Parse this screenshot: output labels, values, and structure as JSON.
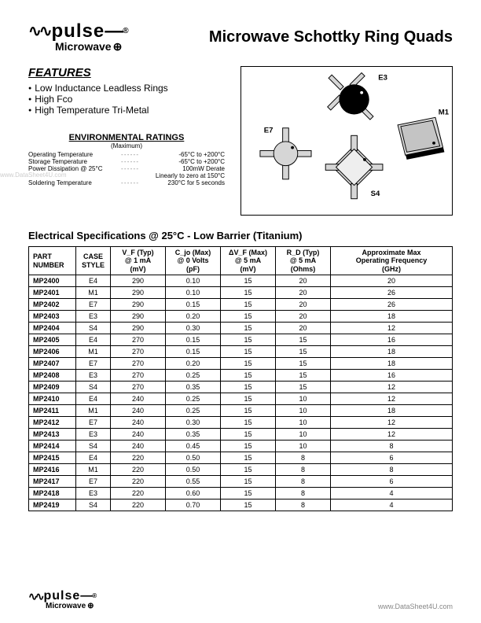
{
  "logo": {
    "brand": "pulse",
    "wave_glyph": "∿∿",
    "register": "®",
    "sub": "Microwave",
    "sub_glyph": "⊕"
  },
  "title": "Microwave Schottky Ring Quads",
  "features": {
    "heading": "FEATURES",
    "items": [
      "Low Inductance Leadless Rings",
      "High Fco",
      "High Temperature Tri-Metal"
    ]
  },
  "env": {
    "heading": "ENVIRONMENTAL RATINGS",
    "sub": "(Maximum)",
    "rows": [
      {
        "label": "Operating Temperature",
        "value": "-65°C to +200°C"
      },
      {
        "label": "Storage Temperature",
        "value": "-65°C to +200°C"
      },
      {
        "label": "Power Dissipation @ 25°C",
        "value": "100mW Derate"
      },
      {
        "label": "",
        "value": "Linearly to zero at 150°C"
      },
      {
        "label": "Soldering Temperature",
        "value": "230°C for 5 seconds"
      }
    ]
  },
  "watermark": "www.DataSheet4U.com",
  "diagram": {
    "labels": {
      "e3": "E3",
      "e7": "E7",
      "s4": "S4",
      "m1": "M1"
    },
    "colors": {
      "outline": "#000000",
      "fill_dark": "#000000",
      "fill_light": "#bbbbbb",
      "fill_body": "#d6d6d6"
    }
  },
  "spec_heading": "Electrical Specifications @ 25°C  - Low Barrier (Titanium)",
  "table": {
    "headers": [
      "PART\nNUMBER",
      "CASE\nSTYLE",
      "V_F (Typ)\n@ 1 mA\n(mV)",
      "C_jo (Max)\n@ 0 Volts\n(pF)",
      "ΔV_F (Max)\n@ 5 mA\n(mV)",
      "R_D (Typ)\n@ 5 mA\n(Ohms)",
      "Approximate Max\nOperating Frequency\n(GHz)"
    ],
    "col_widths": [
      "60px",
      "44px",
      "70px",
      "70px",
      "70px",
      "70px",
      "auto"
    ],
    "rows": [
      [
        "MP2400",
        "E4",
        "290",
        "0.10",
        "15",
        "20",
        "20"
      ],
      [
        "MP2401",
        "M1",
        "290",
        "0.10",
        "15",
        "20",
        "26"
      ],
      [
        "MP2402",
        "E7",
        "290",
        "0.15",
        "15",
        "20",
        "26"
      ],
      [
        "MP2403",
        "E3",
        "290",
        "0.20",
        "15",
        "20",
        "18"
      ],
      [
        "MP2404",
        "S4",
        "290",
        "0.30",
        "15",
        "20",
        "12"
      ],
      [
        "MP2405",
        "E4",
        "270",
        "0.15",
        "15",
        "15",
        "16"
      ],
      [
        "MP2406",
        "M1",
        "270",
        "0.15",
        "15",
        "15",
        "18"
      ],
      [
        "MP2407",
        "E7",
        "270",
        "0.20",
        "15",
        "15",
        "18"
      ],
      [
        "MP2408",
        "E3",
        "270",
        "0.25",
        "15",
        "15",
        "16"
      ],
      [
        "MP2409",
        "S4",
        "270",
        "0.35",
        "15",
        "15",
        "12"
      ],
      [
        "MP2410",
        "E4",
        "240",
        "0.25",
        "15",
        "10",
        "12"
      ],
      [
        "MP2411",
        "M1",
        "240",
        "0.25",
        "15",
        "10",
        "18"
      ],
      [
        "MP2412",
        "E7",
        "240",
        "0.30",
        "15",
        "10",
        "12"
      ],
      [
        "MP2413",
        "E3",
        "240",
        "0.35",
        "15",
        "10",
        "12"
      ],
      [
        "MP2414",
        "S4",
        "240",
        "0.45",
        "15",
        "10",
        "8"
      ],
      [
        "MP2415",
        "E4",
        "220",
        "0.50",
        "15",
        "8",
        "6"
      ],
      [
        "MP2416",
        "M1",
        "220",
        "0.50",
        "15",
        "8",
        "8"
      ],
      [
        "MP2417",
        "E7",
        "220",
        "0.55",
        "15",
        "8",
        "6"
      ],
      [
        "MP2418",
        "E3",
        "220",
        "0.60",
        "15",
        "8",
        "4"
      ],
      [
        "MP2419",
        "S4",
        "220",
        "0.70",
        "15",
        "8",
        "4"
      ]
    ]
  },
  "footer_url": "www.DataSheet4U.com"
}
